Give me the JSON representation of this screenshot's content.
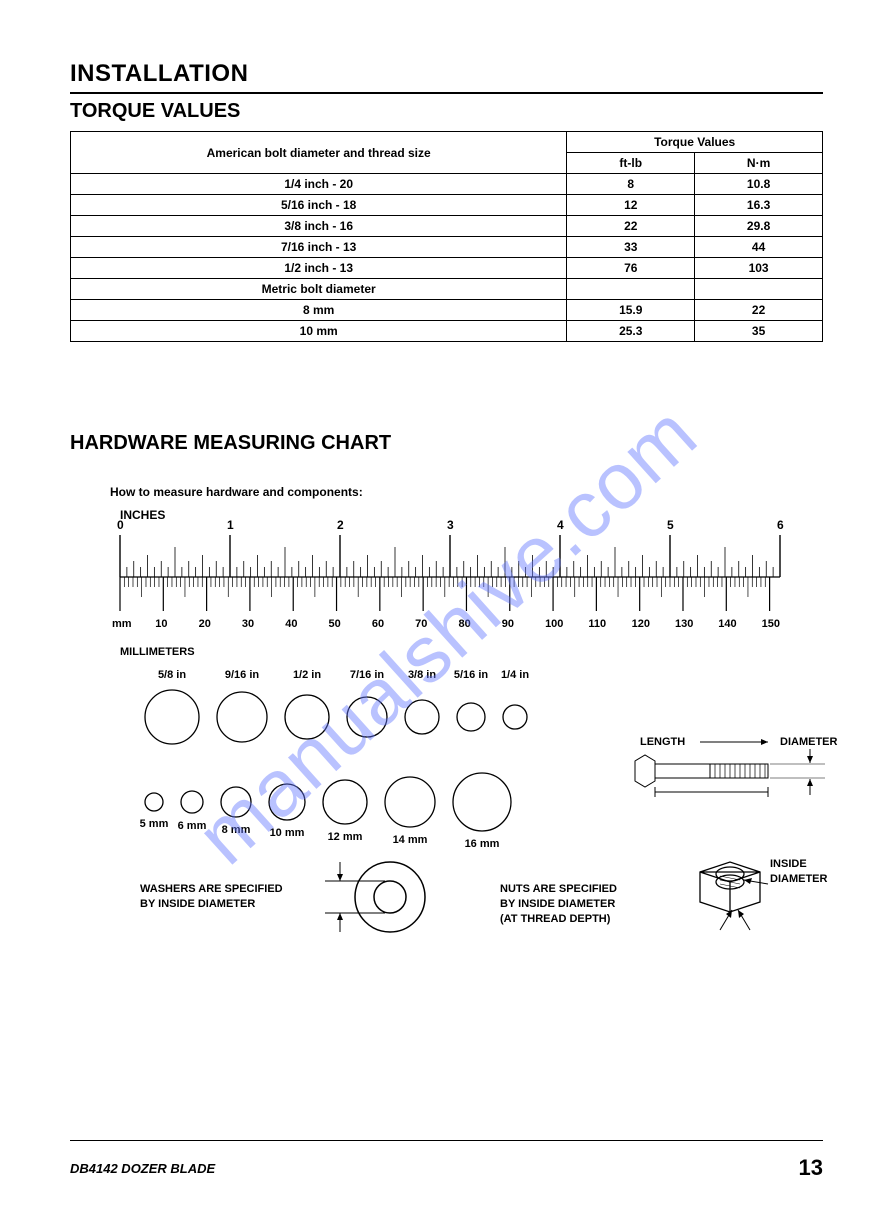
{
  "headings": {
    "h1": "INSTALLATION",
    "h2a": "TORQUE VALUES",
    "h2b": "HARDWARE MEASURING CHART"
  },
  "watermark": "manualshive.com",
  "torqueTable": {
    "header_col1": "American bolt diameter and thread size",
    "header_torque": "Torque Values",
    "unit_ftlb": "ft-lb",
    "unit_nm": "N·m",
    "metric_header": "Metric bolt diameter",
    "rows_american": [
      {
        "size": "1/4 inch - 20",
        "ftlb": "8",
        "nm": "10.8"
      },
      {
        "size": "5/16 inch - 18",
        "ftlb": "12",
        "nm": "16.3"
      },
      {
        "size": "3/8 inch - 16",
        "ftlb": "22",
        "nm": "29.8"
      },
      {
        "size": "7/16 inch - 13",
        "ftlb": "33",
        "nm": "44"
      },
      {
        "size": "1/2 inch - 13",
        "ftlb": "76",
        "nm": "103"
      }
    ],
    "rows_metric": [
      {
        "size": "8 mm",
        "ftlb": "15.9",
        "nm": "22"
      },
      {
        "size": "10 mm",
        "ftlb": "25.3",
        "nm": "35"
      }
    ]
  },
  "measure": {
    "intro": "How to measure hardware and components:",
    "inches_label": "INCHES",
    "mm_label": "MILLIMETERS",
    "inch_ticks": [
      "0",
      "1",
      "2",
      "3",
      "4",
      "5",
      "6"
    ],
    "mm_ticks": [
      "mm",
      "10",
      "20",
      "30",
      "40",
      "50",
      "60",
      "70",
      "80",
      "90",
      "100",
      "110",
      "120",
      "130",
      "140",
      "150"
    ]
  },
  "circles_in": [
    {
      "label": "5/8 in",
      "r": 27
    },
    {
      "label": "9/16 in",
      "r": 25
    },
    {
      "label": "1/2 in",
      "r": 22
    },
    {
      "label": "7/16 in",
      "r": 20
    },
    {
      "label": "3/8 in",
      "r": 17
    },
    {
      "label": "5/16 in",
      "r": 14
    },
    {
      "label": "1/4 in",
      "r": 12
    }
  ],
  "circles_mm": [
    {
      "label": "5 mm",
      "r": 9
    },
    {
      "label": "6 mm",
      "r": 11
    },
    {
      "label": "8 mm",
      "r": 15
    },
    {
      "label": "10 mm",
      "r": 18
    },
    {
      "label": "12 mm",
      "r": 22
    },
    {
      "label": "14 mm",
      "r": 25
    },
    {
      "label": "16 mm",
      "r": 29
    }
  ],
  "bolt_labels": {
    "length": "LENGTH",
    "diameter": "DIAMETER"
  },
  "washer_text": {
    "l1": "WASHERS ARE SPECIFIED",
    "l2": "BY INSIDE DIAMETER"
  },
  "nut_text": {
    "l1": "NUTS ARE SPECIFIED",
    "l2": "BY INSIDE DIAMETER",
    "l3": "(AT THREAD DEPTH)",
    "inside": "INSIDE",
    "diam": "DIAMETER"
  },
  "footer": {
    "product": "DB4142 DOZER BLADE",
    "page": "13"
  },
  "colors": {
    "stroke": "#000000",
    "bg": "#ffffff"
  }
}
